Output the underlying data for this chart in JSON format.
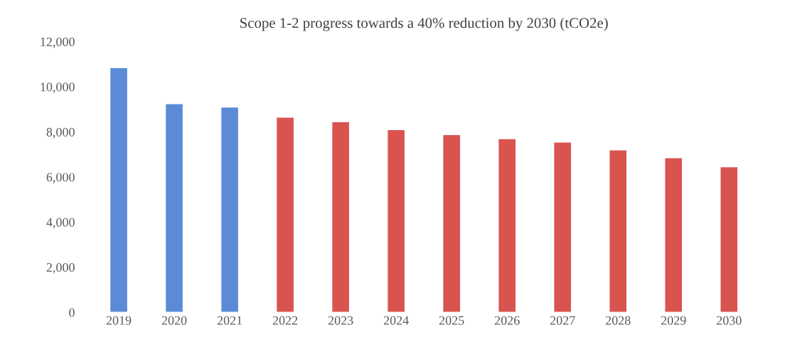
{
  "chart_data": {
    "type": "bar",
    "title": "Scope 1-2 progress towards a 40% reduction by 2030 (tCO2e)",
    "categories": [
      "2019",
      "2020",
      "2021",
      "2022",
      "2023",
      "2024",
      "2025",
      "2026",
      "2027",
      "2028",
      "2029",
      "2030"
    ],
    "values": [
      10850,
      9250,
      9100,
      8650,
      8450,
      8100,
      7880,
      7700,
      7550,
      7200,
      6850,
      6450
    ],
    "colors": [
      "#5b8bd6",
      "#5b8bd6",
      "#5b8bd6",
      "#d9534f",
      "#d9534f",
      "#d9534f",
      "#d9534f",
      "#d9534f",
      "#d9534f",
      "#d9534f",
      "#d9534f",
      "#d9534f"
    ],
    "ylim": [
      0,
      12000
    ],
    "yticks": [
      {
        "value": 0,
        "label": "0"
      },
      {
        "value": 2000,
        "label": "2,000"
      },
      {
        "value": 4000,
        "label": "4,000"
      },
      {
        "value": 6000,
        "label": "6,000"
      },
      {
        "value": 8000,
        "label": "8,000"
      },
      {
        "value": 10000,
        "label": "10,000"
      },
      {
        "value": 12000,
        "label": "12,000"
      }
    ],
    "grid": false,
    "legend": false
  }
}
